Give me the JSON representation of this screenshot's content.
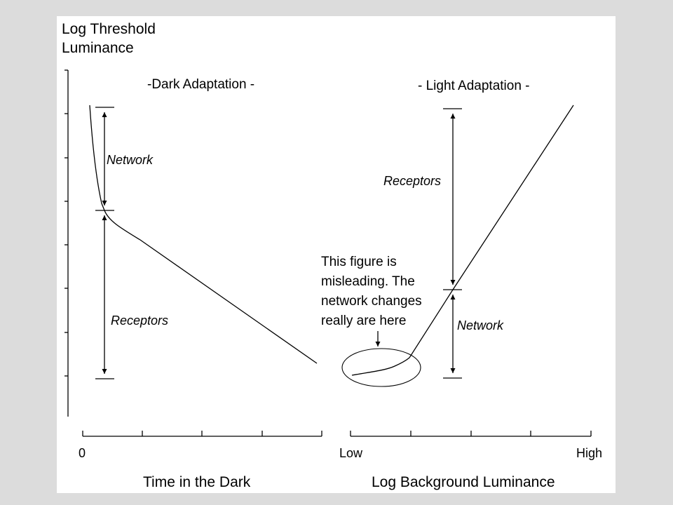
{
  "y_axis_label_line1": "Log Threshold",
  "y_axis_label_line2": "Luminance",
  "left_panel": {
    "title": "-Dark Adaptation -",
    "x_tick_start": "0",
    "x_axis_label": "Time in the Dark",
    "upper_label": "Network",
    "lower_label": "Receptors"
  },
  "right_panel": {
    "title": "- Light Adaptation -",
    "x_tick_start": "Low",
    "x_tick_end": "High",
    "x_axis_label": "Log Background Luminance",
    "upper_label": "Receptors",
    "lower_label": "Network"
  },
  "annotation": {
    "lines": [
      "This figure is",
      "misleading. The",
      "network changes",
      "really are here"
    ]
  }
}
